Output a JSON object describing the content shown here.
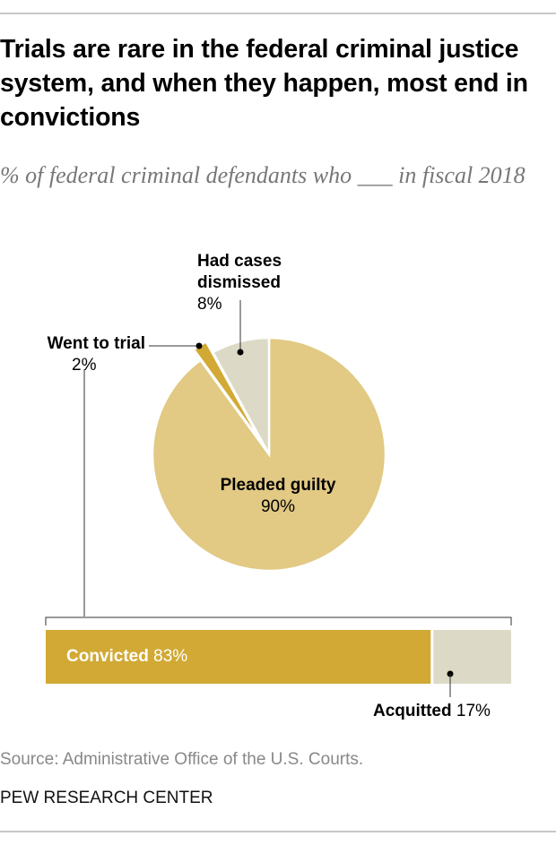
{
  "title": "Trials are rare in the federal criminal justice system, and when they happen, most end in convictions",
  "subtitle": "% of federal criminal defendants who ___ in fiscal 2018",
  "chart_data": [
    {
      "type": "pie",
      "slices": [
        {
          "name": "Pleaded guilty",
          "value": 90,
          "label": "90%",
          "color": "#e2c984"
        },
        {
          "name": "Went to trial",
          "value": 2,
          "label": "2%",
          "color": "#d1a934"
        },
        {
          "name": "Had cases dismissed",
          "value": 8,
          "label": "8%",
          "color": "#dcd9c6"
        }
      ]
    },
    {
      "type": "bar",
      "orientation": "horizontal-stacked",
      "segments": [
        {
          "name": "Convicted",
          "value": 83,
          "label": "83%",
          "color": "#d1a934"
        },
        {
          "name": "Acquitted",
          "value": 17,
          "label": "17%",
          "color": "#dcd9c6"
        }
      ]
    }
  ],
  "source": "Source: Administrative Office of the U.S. Courts.",
  "brand": "PEW RESEARCH CENTER"
}
